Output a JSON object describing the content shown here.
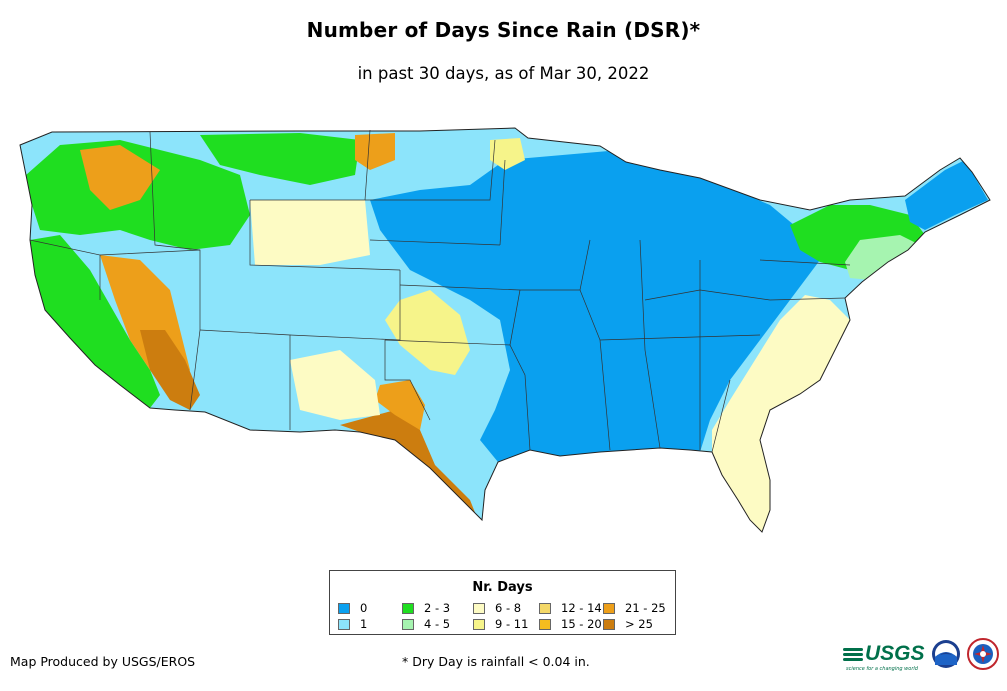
{
  "title": "Number of Days Since Rain (DSR)*",
  "subtitle": "in past 30 days, as of Mar 30, 2022",
  "legend": {
    "title": "Nr. Days",
    "items": [
      {
        "label": "0",
        "color": "#0aa0ef"
      },
      {
        "label": "1",
        "color": "#8ce4fb"
      },
      {
        "label": "2 - 3",
        "color": "#1fde20"
      },
      {
        "label": "4 - 5",
        "color": "#a6f4b0"
      },
      {
        "label": "6 - 8",
        "color": "#fdfbc4"
      },
      {
        "label": "9 - 11",
        "color": "#f6f48a"
      },
      {
        "label": "12 - 14",
        "color": "#f4d868"
      },
      {
        "label": "15 - 20",
        "color": "#f5bd1f"
      },
      {
        "label": "21 - 25",
        "color": "#ed9f1a"
      },
      {
        "label": "> 25",
        "color": "#cc7d0f"
      }
    ]
  },
  "credit": "Map Produced by USGS/EROS",
  "footnote": "* Dry Day is rainfall < 0.04 in.",
  "logos": {
    "usgs": "USGS",
    "usgs_tagline": "science for a changing world",
    "noaa": "noaa-logo",
    "nws": "nws-logo"
  }
}
